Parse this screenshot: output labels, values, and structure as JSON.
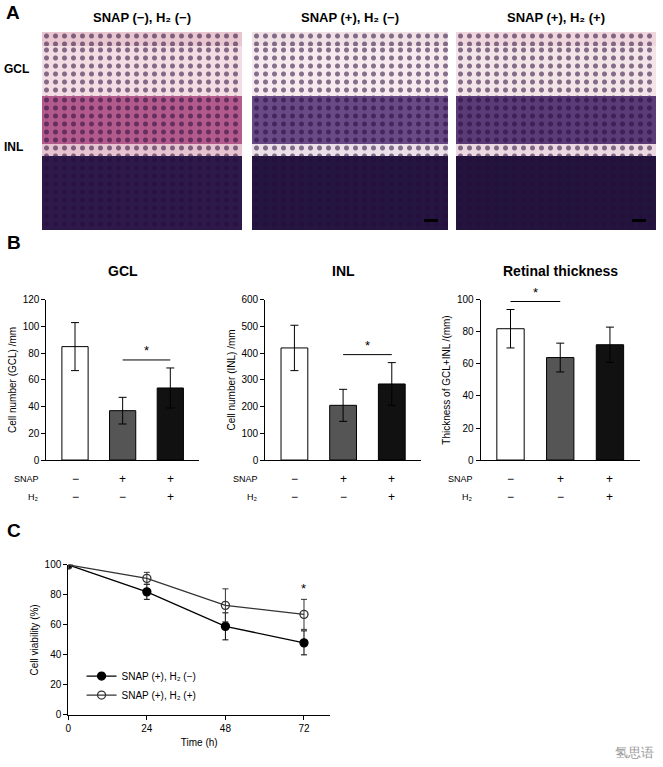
{
  "panels": {
    "A": {
      "label": "A",
      "images": [
        {
          "title": "SNAP (−), H₂ (−)"
        },
        {
          "title": "SNAP (+), H₂ (−)"
        },
        {
          "title": "SNAP (+), H₂ (+)"
        }
      ],
      "layer_labels": [
        "GCL",
        "INL"
      ]
    },
    "B": {
      "label": "B"
    },
    "C": {
      "label": "C"
    }
  },
  "watermark": "氢思语",
  "chart_data": [
    {
      "panel": "B",
      "type": "bar",
      "title": "GCL",
      "y_label": "Cell number (GCL) /mm",
      "row_labels": [
        "SNAP",
        "H₂"
      ],
      "categories": [
        [
          "−",
          "−"
        ],
        [
          "+",
          "−"
        ],
        [
          "+",
          "+"
        ]
      ],
      "values": [
        85,
        37,
        54
      ],
      "errors": [
        18,
        10,
        15
      ],
      "colors": [
        "#ffffff",
        "#555555",
        "#111111"
      ],
      "ylim": [
        0,
        120
      ],
      "yticks": [
        0,
        20,
        40,
        60,
        80,
        100,
        120
      ],
      "grid": false,
      "significance": [
        {
          "from": 1,
          "to": 2,
          "label": "*"
        }
      ]
    },
    {
      "panel": "B",
      "type": "bar",
      "title": "INL",
      "y_label": "Cell number (INL) /mm",
      "row_labels": [
        "SNAP",
        "H₂"
      ],
      "categories": [
        [
          "−",
          "−"
        ],
        [
          "+",
          "−"
        ],
        [
          "+",
          "+"
        ]
      ],
      "values": [
        420,
        205,
        285
      ],
      "errors": [
        85,
        60,
        80
      ],
      "colors": [
        "#ffffff",
        "#555555",
        "#111111"
      ],
      "ylim": [
        0,
        600
      ],
      "yticks": [
        0,
        100,
        200,
        300,
        400,
        500,
        600
      ],
      "grid": false,
      "significance": [
        {
          "from": 1,
          "to": 2,
          "label": "*"
        }
      ]
    },
    {
      "panel": "B",
      "type": "bar",
      "title": "Retinal thickness",
      "y_label": "Thickness of GCL+INL /(mm)",
      "row_labels": [
        "SNAP",
        "H₂"
      ],
      "categories": [
        [
          "−",
          "−"
        ],
        [
          "+",
          "−"
        ],
        [
          "+",
          "+"
        ]
      ],
      "values": [
        82,
        64,
        72
      ],
      "errors": [
        12,
        9,
        11
      ],
      "colors": [
        "#ffffff",
        "#555555",
        "#111111"
      ],
      "ylim": [
        0,
        100
      ],
      "yticks": [
        0,
        20,
        40,
        60,
        80,
        100
      ],
      "grid": false,
      "significance": [
        {
          "from": 0,
          "to": 1,
          "label": "*"
        }
      ]
    },
    {
      "panel": "C",
      "type": "line",
      "x_label": "Time (h)",
      "y_label": "Cell viability (%)",
      "x": [
        0,
        24,
        48,
        72
      ],
      "series": [
        {
          "name": "SNAP (+), H₂ (−)",
          "color": "#000000",
          "marker": "circle",
          "values": [
            100,
            82,
            59,
            48
          ],
          "errors": [
            0,
            5,
            9,
            8
          ]
        },
        {
          "name": "SNAP (+), H₂ (+)",
          "color": "#333333",
          "marker": "circle-open",
          "values": [
            100,
            91,
            73,
            67
          ],
          "errors": [
            0,
            4,
            11,
            10
          ]
        }
      ],
      "xlim": [
        0,
        80
      ],
      "xticks": [
        0,
        24,
        48,
        72
      ],
      "ylim": [
        0,
        100
      ],
      "yticks": [
        0,
        20,
        40,
        60,
        80,
        100
      ],
      "grid": false,
      "legend": "lower left",
      "annotations": [
        {
          "x": 72,
          "y": 78,
          "text": "*"
        }
      ]
    }
  ]
}
